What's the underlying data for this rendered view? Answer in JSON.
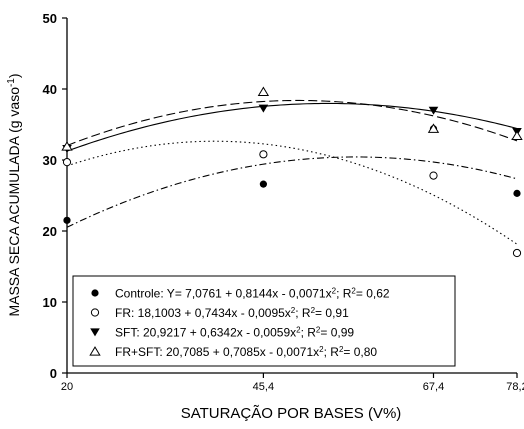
{
  "chart_data": {
    "type": "scatter",
    "title": "",
    "xlabel": "SATURAÇÃO POR BASES (V%)",
    "ylabel": "MASSA SECA ACUMULADA (g vaso",
    "ylabel_superscript": "-1",
    "ylabel_close": ")",
    "xlim": [
      20,
      78.2
    ],
    "ylim": [
      0,
      50
    ],
    "x_ticks": [
      20,
      45.4,
      67.4,
      78.2
    ],
    "x_tick_labels": [
      "20",
      "45,4",
      "67,4",
      "78,2"
    ],
    "y_ticks": [
      0,
      10,
      20,
      30,
      40,
      50
    ],
    "y_tick_labels": [
      "0",
      "10",
      "20",
      "30",
      "40",
      "50"
    ],
    "grid": false,
    "legend_position": "bottom-left",
    "series": [
      {
        "marker": "filled-circle",
        "line_style": "dash-dot",
        "legend_text": "Controle: Y= 7,0761 + 0,8144x - 0,0071x",
        "legend_sup": "2",
        "legend_tail": "; R",
        "legend_tail_sup": "2",
        "legend_end": "= 0,62",
        "coefficients": [
          7.0761,
          0.8144,
          -0.0071
        ],
        "points": [
          [
            20,
            21.5
          ],
          [
            45.4,
            26.6
          ],
          [
            67.4,
            34.4
          ],
          [
            78.2,
            25.3
          ]
        ]
      },
      {
        "marker": "open-circle",
        "line_style": "dotted",
        "legend_text": "FR: 18,1003 + 0,7434x - 0,0095x",
        "legend_sup": "2",
        "legend_tail": "; R",
        "legend_tail_sup": "2",
        "legend_end": "= 0,91",
        "coefficients": [
          18.1003,
          0.7434,
          -0.0095
        ],
        "points": [
          [
            20,
            29.7
          ],
          [
            45.4,
            30.8
          ],
          [
            67.4,
            27.8
          ],
          [
            78.2,
            16.9
          ]
        ]
      },
      {
        "marker": "filled-triangle-down",
        "line_style": "solid",
        "legend_text": "SFT: 20,9217 + 0,6342x - 0,0059x",
        "legend_sup": "2",
        "legend_tail": "; R",
        "legend_tail_sup": "2",
        "legend_end": "= 0,99",
        "coefficients": [
          20.9217,
          0.6342,
          -0.0059
        ],
        "points": [
          [
            20,
            31.6
          ],
          [
            45.4,
            37.3
          ],
          [
            67.4,
            37.0
          ],
          [
            78.2,
            34.0
          ]
        ]
      },
      {
        "marker": "open-triangle-up",
        "line_style": "dashed",
        "legend_text": "FR+SFT: 20,7085 + 0,7085x - 0,0071x",
        "legend_sup": "2",
        "legend_tail": "; R",
        "legend_tail_sup": "2",
        "legend_end": "= 0,80",
        "coefficients": [
          20.7085,
          0.7085,
          -0.0071
        ],
        "points": [
          [
            20,
            31.9
          ],
          [
            45.4,
            39.6
          ],
          [
            67.4,
            34.4
          ],
          [
            78.2,
            33.4
          ]
        ]
      }
    ]
  }
}
